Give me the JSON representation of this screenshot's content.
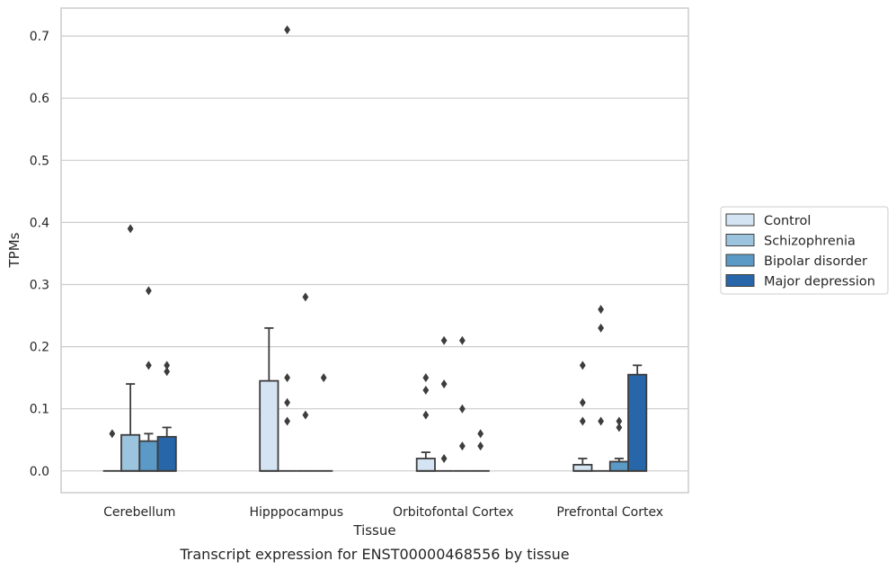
{
  "chart_data": {
    "type": "box",
    "xlabel": "Tissue",
    "ylabel": "TPMs",
    "caption": "Transcript expression for ENST00000468556 by tissue",
    "ylim": [
      -0.035,
      0.745
    ],
    "yticks": [
      0.0,
      0.1,
      0.2,
      0.3,
      0.4,
      0.5,
      0.6,
      0.7
    ],
    "ytick_labels": [
      "0.0",
      "0.1",
      "0.2",
      "0.3",
      "0.4",
      "0.5",
      "0.6",
      "0.7"
    ],
    "grid": true,
    "legend_position": "right",
    "categories": [
      "Cerebellum",
      "Hipppocampus",
      "Orbitofontal Cortex",
      "Prefrontal Cortex"
    ],
    "series": [
      {
        "name": "Control",
        "color": "#d4e4f3",
        "boxes": [
          {
            "q1": 0,
            "median": 0,
            "q3": 0,
            "whisker_low": 0,
            "whisker_high": 0,
            "outliers": [
              0.06
            ]
          },
          {
            "q1": 0,
            "median": 0,
            "q3": 0.145,
            "whisker_low": 0,
            "whisker_high": 0.23,
            "outliers": []
          },
          {
            "q1": 0,
            "median": 0,
            "q3": 0.02,
            "whisker_low": 0,
            "whisker_high": 0.03,
            "outliers": [
              0.15,
              0.13,
              0.09
            ]
          },
          {
            "q1": 0,
            "median": 0,
            "q3": 0.01,
            "whisker_low": 0,
            "whisker_high": 0.02,
            "outliers": [
              0.17,
              0.11,
              0.08
            ]
          }
        ]
      },
      {
        "name": "Schizophrenia",
        "color": "#9dc4de",
        "boxes": [
          {
            "q1": 0,
            "median": 0,
            "q3": 0.058,
            "whisker_low": 0,
            "whisker_high": 0.14,
            "outliers": [
              0.39
            ]
          },
          {
            "q1": 0,
            "median": 0,
            "q3": 0,
            "whisker_low": 0,
            "whisker_high": 0,
            "outliers": [
              0.71,
              0.15,
              0.11,
              0.08
            ]
          },
          {
            "q1": 0,
            "median": 0,
            "q3": 0,
            "whisker_low": 0,
            "whisker_high": 0,
            "outliers": [
              0.21,
              0.14,
              0.02
            ]
          },
          {
            "q1": 0,
            "median": 0,
            "q3": 0,
            "whisker_low": 0,
            "whisker_high": 0,
            "outliers": [
              0.26,
              0.23,
              0.08
            ]
          }
        ]
      },
      {
        "name": "Bipolar disorder",
        "color": "#5b9ac6",
        "boxes": [
          {
            "q1": 0,
            "median": 0,
            "q3": 0.048,
            "whisker_low": 0,
            "whisker_high": 0.06,
            "outliers": [
              0.29,
              0.17
            ]
          },
          {
            "q1": 0,
            "median": 0,
            "q3": 0,
            "whisker_low": 0,
            "whisker_high": 0,
            "outliers": [
              0.28,
              0.09
            ]
          },
          {
            "q1": 0,
            "median": 0,
            "q3": 0,
            "whisker_low": 0,
            "whisker_high": 0,
            "outliers": [
              0.21,
              0.1,
              0.04
            ]
          },
          {
            "q1": 0,
            "median": 0,
            "q3": 0.015,
            "whisker_low": 0,
            "whisker_high": 0.02,
            "outliers": [
              0.08,
              0.07
            ]
          }
        ]
      },
      {
        "name": "Major depression",
        "color": "#2767a9",
        "boxes": [
          {
            "q1": 0,
            "median": 0,
            "q3": 0.055,
            "whisker_low": 0,
            "whisker_high": 0.07,
            "outliers": [
              0.17,
              0.16
            ]
          },
          {
            "q1": 0,
            "median": 0,
            "q3": 0,
            "whisker_low": 0,
            "whisker_high": 0,
            "outliers": [
              0.15
            ]
          },
          {
            "q1": 0,
            "median": 0,
            "q3": 0,
            "whisker_low": 0,
            "whisker_high": 0,
            "outliers": [
              0.06,
              0.04
            ]
          },
          {
            "q1": 0,
            "median": 0,
            "q3": 0.155,
            "whisker_low": 0,
            "whisker_high": 0.17,
            "outliers": []
          }
        ]
      }
    ],
    "colors": {
      "grid": "#cccccc",
      "frame": "#cccccc",
      "box_edge": "#3d3d3d",
      "outlier": "#3d3d3d"
    }
  }
}
